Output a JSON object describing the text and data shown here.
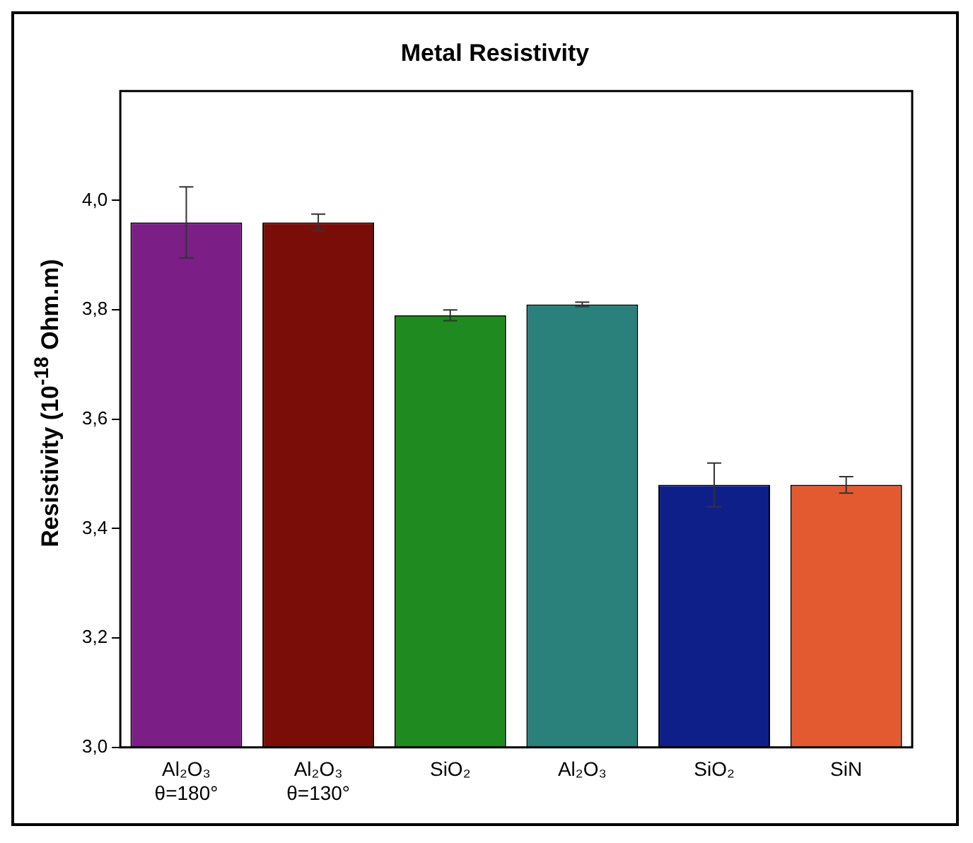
{
  "chart_data": {
    "type": "bar",
    "title": "Metal Resistivity",
    "ylabel": "Resistivity (10$^{-18}$ Ohm.m)",
    "categories": [
      "Al₂O₃\nθ=180°",
      "Al₂O₃\nθ=130°",
      "SiO₂",
      "Al₂O₃",
      "SiO₂",
      "SiN"
    ],
    "values": [
      3.96,
      3.96,
      3.79,
      3.81,
      3.48,
      3.48
    ],
    "errors": [
      0.065,
      0.015,
      0.01,
      0.004,
      0.04,
      0.015
    ],
    "colors": [
      "#7b1f86",
      "#7a0d07",
      "#1f8a1f",
      "#2a807b",
      "#0f1f8a",
      "#e45a30"
    ],
    "ylim": [
      3.0,
      4.2
    ],
    "yticks": [
      {
        "value": 3.0,
        "label": "3,0"
      },
      {
        "value": 3.2,
        "label": "3,2"
      },
      {
        "value": 3.4,
        "label": "3,4"
      },
      {
        "value": 3.6,
        "label": "3,6"
      },
      {
        "value": 3.8,
        "label": "3,8"
      },
      {
        "value": 4.0,
        "label": "4,0"
      }
    ],
    "grid": false,
    "legend": false
  }
}
